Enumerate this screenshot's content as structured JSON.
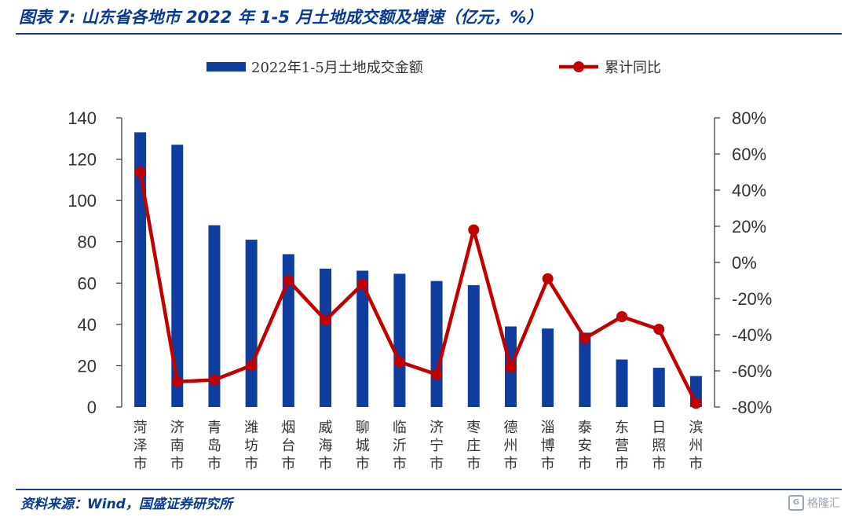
{
  "header": {
    "title": "图表 7:  山东省各地市 2022 年 1-5 月土地成交额及增速（亿元，%）"
  },
  "footer": {
    "source": "资料来源：Wind，国盛证券研究所",
    "watermark": "格隆汇",
    "watermark_icon": "G"
  },
  "colors": {
    "bar": "#0e3d9e",
    "line": "#c00000",
    "axis": "#333333",
    "title": "#0a3a8c"
  },
  "chart_data": {
    "type": "bar",
    "categories": [
      "菏泽市",
      "济南市",
      "青岛市",
      "潍坊市",
      "烟台市",
      "威海市",
      "聊城市",
      "临沂市",
      "济宁市",
      "枣庄市",
      "德州市",
      "淄博市",
      "泰安市",
      "东营市",
      "日照市",
      "滨州市"
    ],
    "series": [
      {
        "name": "2022年1-5月土地成交金额",
        "type": "bar",
        "axis": "left",
        "values": [
          133,
          127,
          88,
          81,
          74,
          67,
          66,
          64.5,
          61,
          59,
          39,
          38,
          36,
          23,
          19,
          15
        ]
      },
      {
        "name": "累计同比",
        "type": "line",
        "axis": "right",
        "unit": "%",
        "values": [
          50,
          -66,
          -65,
          -57,
          -10,
          -32,
          -12,
          -55,
          -62,
          18,
          -58,
          -9,
          -42,
          -30,
          -37,
          -78
        ]
      }
    ],
    "y_left": {
      "min": 0,
      "max": 140,
      "step": 20,
      "ticks": [
        "0",
        "20",
        "40",
        "60",
        "80",
        "100",
        "120",
        "140"
      ]
    },
    "y_right": {
      "min": -80,
      "max": 80,
      "step": 20,
      "ticks": [
        "-80%",
        "-60%",
        "-40%",
        "-20%",
        "0%",
        "20%",
        "40%",
        "60%",
        "80%"
      ]
    },
    "legend_position": "top",
    "grid": false
  }
}
